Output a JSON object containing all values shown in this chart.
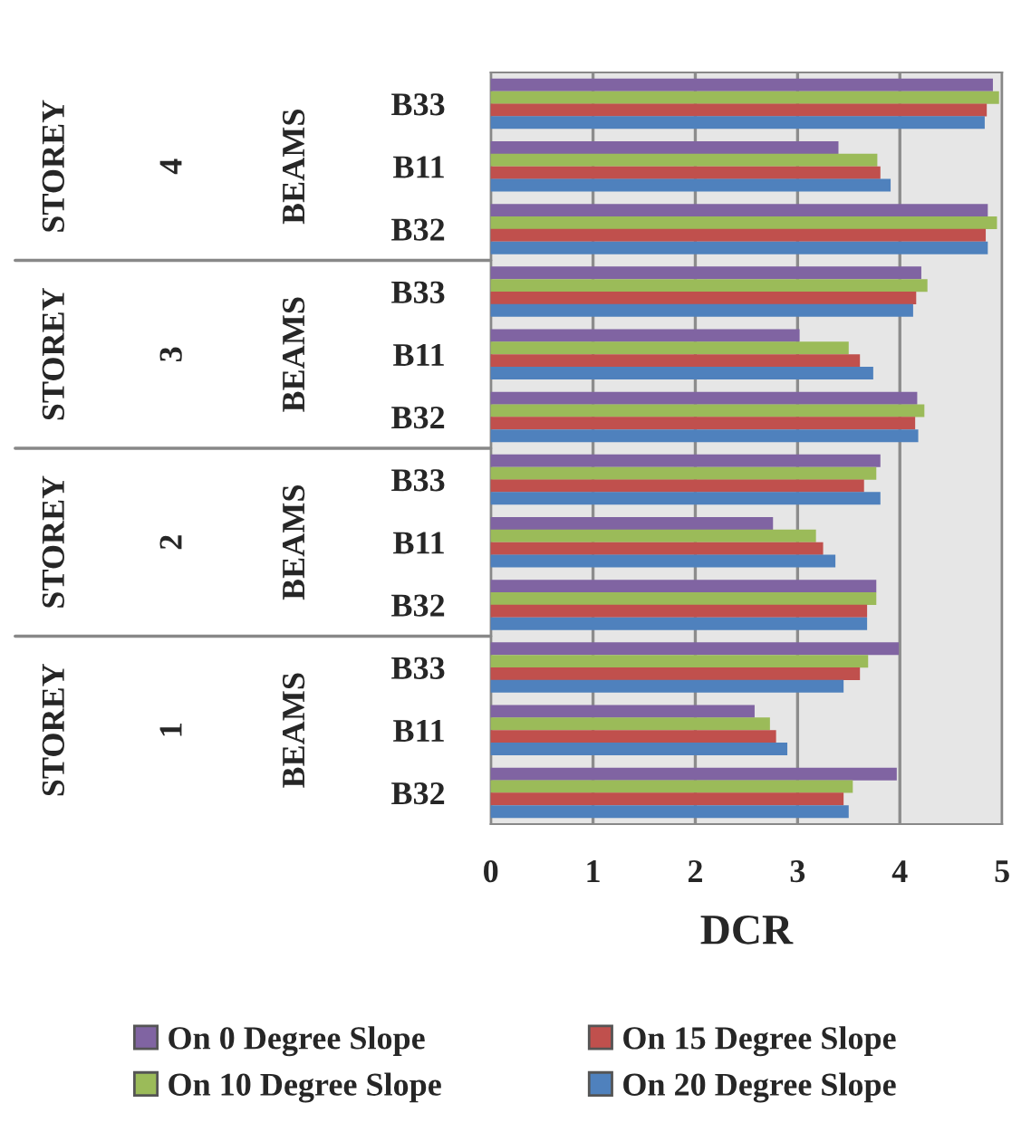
{
  "chart_data": {
    "type": "bar",
    "orientation": "horizontal",
    "xlabel": "DCR",
    "categories": [
      "B33",
      "B11",
      "B32",
      "B33",
      "B11",
      "B32",
      "B33",
      "B11",
      "B32",
      "B33",
      "B11",
      "B32"
    ],
    "annotations": [
      "STOREY",
      "4",
      "BEAMS",
      "STOREY",
      "3",
      "BEAMS",
      "STOREY",
      "2",
      "BEAMS",
      "STOREY",
      "1",
      "BEAMS"
    ],
    "series": [
      {
        "name": "On 0 Degree Slope",
        "color": "#8064a2",
        "values": [
          4.9,
          3.39,
          4.85,
          4.2,
          3.01,
          4.16,
          3.8,
          2.75,
          3.76,
          3.98,
          2.57,
          3.96
        ]
      },
      {
        "name": "On 10 Degree Slope",
        "color": "#9bbb59",
        "values": [
          4.96,
          3.77,
          4.94,
          4.26,
          3.49,
          4.23,
          3.76,
          3.17,
          3.76,
          3.68,
          2.72,
          3.53
        ]
      },
      {
        "name": "On 15 Degree Slope",
        "color": "#c0504d",
        "values": [
          4.84,
          3.8,
          4.83,
          4.15,
          3.6,
          4.14,
          3.64,
          3.24,
          3.67,
          3.6,
          2.78,
          3.44
        ]
      },
      {
        "name": "On 20 Degree Slope",
        "color": "#4f81bd",
        "values": [
          4.82,
          3.9,
          4.85,
          4.12,
          3.73,
          4.17,
          3.8,
          3.36,
          3.67,
          3.44,
          2.89,
          3.49
        ]
      }
    ],
    "xlim": [
      0,
      5
    ],
    "xticks": [
      0,
      1,
      2,
      3,
      4,
      5
    ],
    "grid": "x",
    "legend": "bottom"
  }
}
